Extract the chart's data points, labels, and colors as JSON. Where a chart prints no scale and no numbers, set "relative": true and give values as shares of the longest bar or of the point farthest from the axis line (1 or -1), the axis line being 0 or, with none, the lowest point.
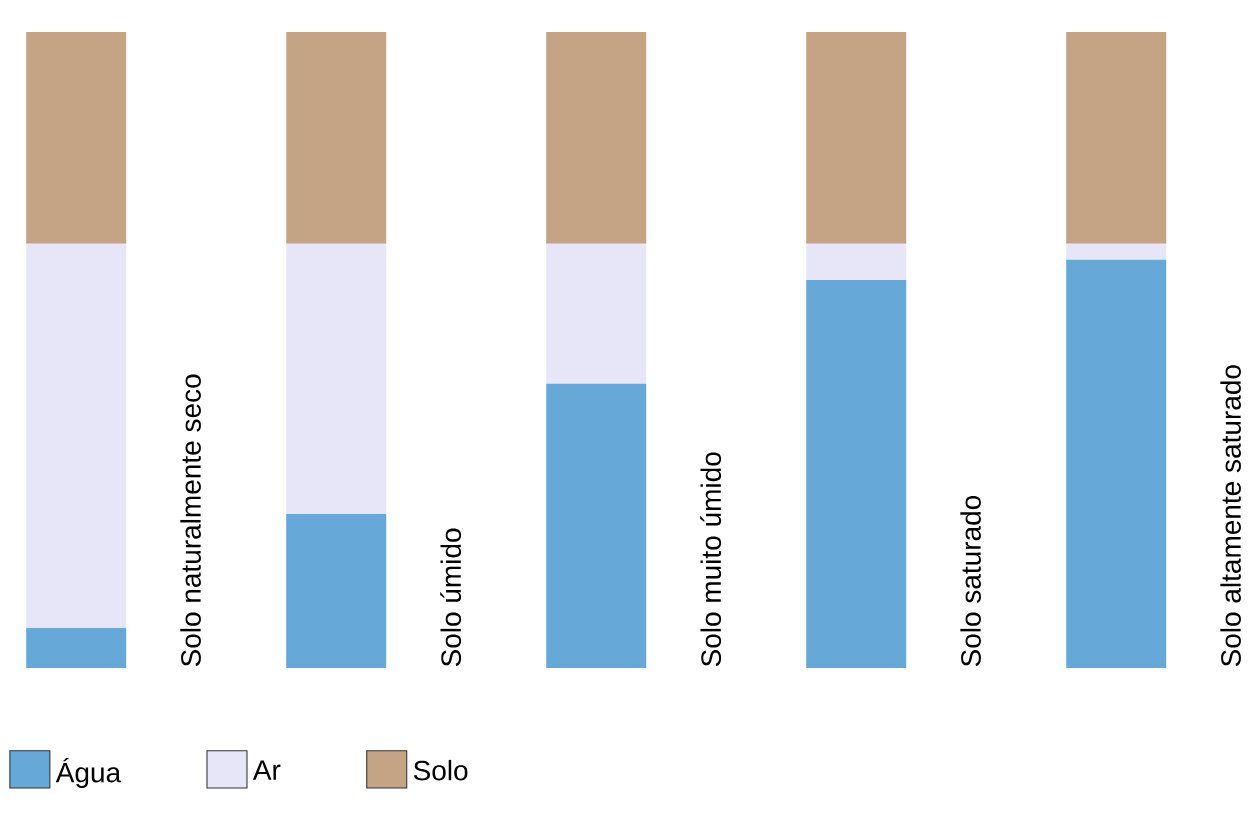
{
  "chart_data": {
    "type": "bar",
    "stacked": true,
    "relative": true,
    "legend": "bottom",
    "categories": [
      "Solo naturalmente seco",
      "Solo úmido",
      "Solo muito úmido",
      "Solo saturado",
      "Solo altamente saturado"
    ],
    "series": [
      {
        "name": "Água",
        "color": "#66a8d8",
        "values": [
          0.063,
          0.242,
          0.447,
          0.61,
          0.642
        ]
      },
      {
        "name": "Ar",
        "color": "#e6e6f8",
        "values": [
          0.604,
          0.425,
          0.22,
          0.057,
          0.025
        ]
      },
      {
        "name": "Solo",
        "color": "#c4a484",
        "values": [
          0.333,
          0.333,
          0.333,
          0.333,
          0.333
        ]
      }
    ]
  }
}
